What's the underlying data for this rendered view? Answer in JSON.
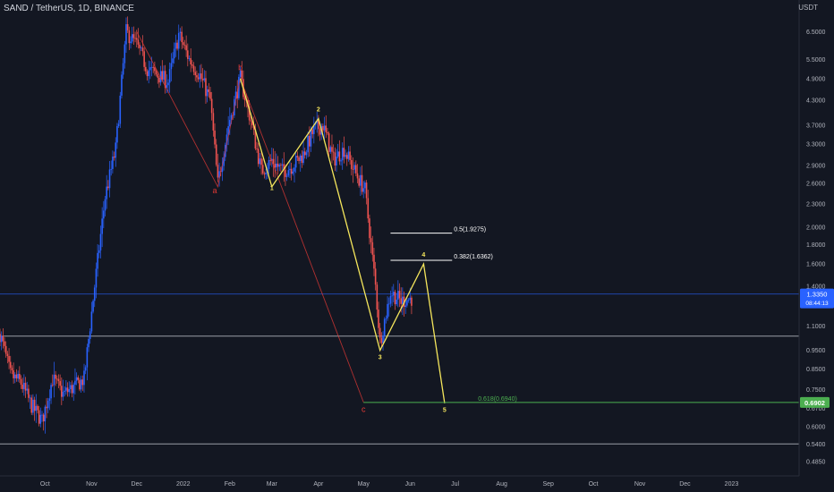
{
  "header": {
    "symbol_line": "SAND / TetherUS, 1D, BINANCE"
  },
  "axis": {
    "currency": "USDT",
    "price_ticks": [
      "6.5000",
      "5.5000",
      "4.9000",
      "4.3000",
      "3.7000",
      "3.3000",
      "2.9000",
      "2.6000",
      "2.3000",
      "2.0000",
      "1.8000",
      "1.6000",
      "1.4000",
      "1.1000",
      "0.9500",
      "0.8500",
      "0.7500",
      "0.6700",
      "0.6000",
      "0.5400",
      "0.4850"
    ],
    "price_tick_values": [
      6.5,
      5.5,
      4.9,
      4.3,
      3.7,
      3.3,
      2.9,
      2.6,
      2.3,
      2.0,
      1.8,
      1.6,
      1.4,
      1.1,
      0.95,
      0.85,
      0.75,
      0.67,
      0.6,
      0.54,
      0.485
    ],
    "time_ticks": [
      "Oct",
      "Nov",
      "Dec",
      "2022",
      "Feb",
      "Mar",
      "Apr",
      "May",
      "Jun",
      "Jul",
      "Aug",
      "Sep",
      "Oct",
      "Nov",
      "Dec",
      "2023"
    ],
    "time_tick_dates": [
      "2021-10-01",
      "2021-11-01",
      "2021-12-01",
      "2022-01-01",
      "2022-02-01",
      "2022-03-01",
      "2022-04-01",
      "2022-05-01",
      "2022-06-01",
      "2022-07-01",
      "2022-08-01",
      "2022-09-01",
      "2022-10-01",
      "2022-11-01",
      "2022-12-01",
      "2023-01-01"
    ]
  },
  "badges": {
    "last_price": "1.3350",
    "countdown": "08:44:13",
    "target_price": "0.6902"
  },
  "colors": {
    "background": "#131722",
    "up": "#2962ff",
    "down": "#ef5350",
    "wave_yellow": "#f5e65c",
    "correction_red": "#e53935",
    "fib_white": "#ffffff",
    "target_green": "#4caf50",
    "last_price_blue": "#2962ff"
  },
  "chart_data": {
    "type": "candlestick",
    "title": "SAND / TetherUS, 1D, BINANCE",
    "y_scale": "log",
    "ylim": [
      0.465,
      7.3
    ],
    "xlim": [
      "2021-09-01",
      "2023-02-15"
    ],
    "price_path": [
      [
        "2021-09-01",
        1.05
      ],
      [
        "2021-09-08",
        0.82
      ],
      [
        "2021-09-15",
        0.78
      ],
      [
        "2021-09-22",
        0.68
      ],
      [
        "2021-09-29",
        0.62
      ],
      [
        "2021-10-06",
        0.8
      ],
      [
        "2021-10-13",
        0.73
      ],
      [
        "2021-10-20",
        0.76
      ],
      [
        "2021-10-27",
        0.8
      ],
      [
        "2021-11-03",
        1.4
      ],
      [
        "2021-11-10",
        2.4
      ],
      [
        "2021-11-17",
        3.2
      ],
      [
        "2021-11-24",
        6.5
      ],
      [
        "2021-12-01",
        6.0
      ],
      [
        "2021-12-08",
        5.2
      ],
      [
        "2021-12-15",
        5.0
      ],
      [
        "2021-12-22",
        4.8
      ],
      [
        "2021-12-29",
        6.4
      ],
      [
        "2022-01-05",
        5.5
      ],
      [
        "2022-01-12",
        5.0
      ],
      [
        "2022-01-19",
        4.3
      ],
      [
        "2022-01-24",
        2.6
      ],
      [
        "2022-01-31",
        3.7
      ],
      [
        "2022-02-08",
        4.9
      ],
      [
        "2022-02-15",
        3.8
      ],
      [
        "2022-02-22",
        2.8
      ],
      [
        "2022-03-01",
        3.0
      ],
      [
        "2022-03-08",
        2.8
      ],
      [
        "2022-03-15",
        2.9
      ],
      [
        "2022-03-22",
        3.1
      ],
      [
        "2022-03-29",
        3.6
      ],
      [
        "2022-04-04",
        3.7
      ],
      [
        "2022-04-11",
        3.0
      ],
      [
        "2022-04-18",
        3.2
      ],
      [
        "2022-04-25",
        2.8
      ],
      [
        "2022-05-02",
        2.5
      ],
      [
        "2022-05-09",
        1.4
      ],
      [
        "2022-05-12",
        1.0
      ],
      [
        "2022-05-19",
        1.35
      ],
      [
        "2022-05-26",
        1.28
      ],
      [
        "2022-06-02",
        1.3
      ]
    ],
    "lines": [
      {
        "name": "wave-b",
        "color": "red",
        "points": [
          [
            "2021-12-01",
            6.5
          ],
          [
            "2022-01-24",
            2.55
          ],
          [
            "2022-02-08",
            4.9
          ]
        ]
      },
      {
        "name": "wave-c",
        "color": "red",
        "points": [
          [
            "2022-02-08",
            4.9
          ],
          [
            "2022-05-01",
            0.695
          ]
        ]
      },
      {
        "name": "impulse",
        "color": "yellow",
        "points": [
          [
            "2022-02-08",
            4.9
          ],
          [
            "2022-03-01",
            2.55
          ],
          [
            "2022-04-01",
            3.85
          ],
          [
            "2022-05-12",
            0.95
          ],
          [
            "2022-06-10",
            1.6
          ],
          [
            "2022-06-24",
            0.69
          ]
        ]
      }
    ],
    "wave_labels": [
      {
        "text": "a",
        "date": "2022-01-22",
        "price": 2.45,
        "color": "red"
      },
      {
        "text": "b",
        "date": "2022-02-08",
        "price": 5.15,
        "color": "red"
      },
      {
        "text": "c",
        "date": "2022-05-01",
        "price": 0.655,
        "color": "red"
      },
      {
        "text": "1",
        "date": "2022-03-01",
        "price": 2.5,
        "color": "yellow"
      },
      {
        "text": "2",
        "date": "2022-04-01",
        "price": 4.02,
        "color": "yellow"
      },
      {
        "text": "3",
        "date": "2022-05-12",
        "price": 0.9,
        "color": "yellow"
      },
      {
        "text": "4",
        "date": "2022-06-10",
        "price": 1.67,
        "color": "yellow"
      },
      {
        "text": "5",
        "date": "2022-06-24",
        "price": 0.655,
        "color": "yellow"
      }
    ],
    "fib_levels": [
      {
        "label": "0.5(1.9275)",
        "price": 1.9275,
        "from": "2022-05-19",
        "to": "2022-06-29",
        "color": "white"
      },
      {
        "label": "0.382(1.6362)",
        "price": 1.6362,
        "from": "2022-05-19",
        "to": "2022-06-29",
        "color": "white"
      },
      {
        "label": "0.618(0.6940)",
        "price": 0.694,
        "from": "2022-05-01",
        "to": "2023-02-15",
        "color": "green"
      }
    ],
    "horizontal_lines": [
      {
        "name": "last-price-line",
        "price": 1.335,
        "color": "blue"
      },
      {
        "name": "support-line",
        "price": 1.035,
        "color": "gray"
      },
      {
        "name": "low-line",
        "price": 0.54,
        "color": "gray"
      }
    ]
  }
}
